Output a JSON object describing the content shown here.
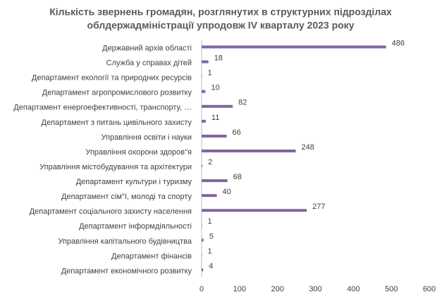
{
  "chart_data": {
    "type": "bar",
    "orientation": "horizontal",
    "title": [
      "Кількість звернень громадян, розглянутих в структурних підрозділах",
      "облдержадміністрації упродовж IV кварталу 2023 року"
    ],
    "categories": [
      "Державний архів області",
      "Служба у справах  дітей",
      "Департамент екології та природних ресурсів",
      "Департамент агропромислового розвитку",
      "Департамент енергоефективності, транспорту, …",
      "Департамент з питань цивільного захисту",
      "Управління освіти і науки",
      "Управління охорони здоров\"я",
      "Управління містобудування та архітектури",
      "Департамент культури і туризму",
      "Департамент сім\"ї, молоді та спорту",
      "Департамент соціального захисту населення",
      "Департамент інформдіяльності",
      "Управління капітального будівництва",
      "Департамент фінансів",
      "Департамент економічного розвитку"
    ],
    "values": [
      486,
      18,
      1,
      10,
      82,
      11,
      66,
      248,
      2,
      68,
      40,
      277,
      1,
      5,
      1,
      4
    ],
    "color": "#8064a2",
    "xlim": [
      0,
      600
    ],
    "xticks": [
      0,
      100,
      200,
      300,
      400,
      500,
      600
    ],
    "grid": false
  }
}
